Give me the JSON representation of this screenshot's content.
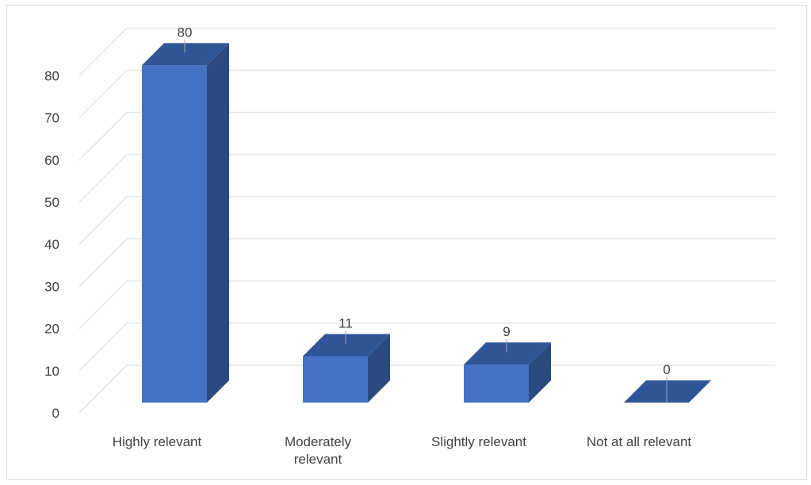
{
  "chart_data": {
    "type": "bar",
    "style": "3d-column",
    "title": "",
    "xlabel": "",
    "ylabel": "",
    "categories": [
      [
        "Highly relevant"
      ],
      [
        "Moderately",
        "relevant"
      ],
      [
        "Slightly relevant"
      ],
      [
        "Not at all relevant"
      ]
    ],
    "values": [
      80,
      11,
      9,
      0
    ],
    "data_labels": [
      "80",
      "11",
      "9",
      "0"
    ],
    "ylim": [
      0,
      80
    ],
    "yticks": [
      0,
      10,
      20,
      30,
      40,
      50,
      60,
      70,
      80
    ],
    "grid": true,
    "legend": "none",
    "colors": {
      "bar_front": "#4472c4",
      "bar_top": "#2f5597",
      "bar_side": "#2b4a80",
      "grid": "#d9d9d9",
      "text": "#404040",
      "leader": "#a6a6a6"
    }
  }
}
